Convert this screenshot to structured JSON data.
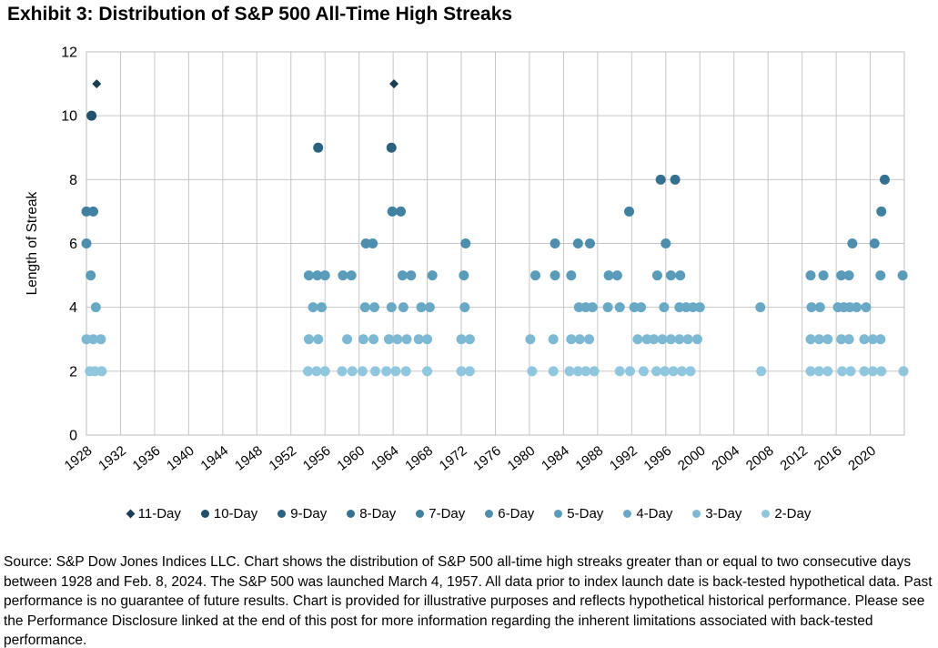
{
  "source_note": "Source: S&P Dow Jones Indices LLC. Chart shows the distribution of S&P 500 all-time high streaks greater than or equal to two consecutive days between 1928 and Feb. 8, 2024. The S&P 500 was launched March 4, 1957. All data prior to index launch date is back-tested hypothetical data. Past performance is no guarantee of future results. Chart is provided for illustrative purposes and reflects hypothetical historical performance. Please see the Performance Disclosure linked at the end of this post for more information regarding the inherent limitations associated with back-tested performance.",
  "chart_data": {
    "type": "scatter",
    "title": "Exhibit 3: Distribution of S&P 500 All-Time High Streaks",
    "xlabel": "",
    "ylabel": "Length of Streak",
    "xlim": [
      1928,
      2024
    ],
    "ylim": [
      0,
      12
    ],
    "xticks": [
      1928,
      1932,
      1936,
      1940,
      1944,
      1948,
      1952,
      1956,
      1960,
      1964,
      1968,
      1972,
      1976,
      1980,
      1984,
      1988,
      1992,
      1996,
      2000,
      2004,
      2008,
      2012,
      2016,
      2020
    ],
    "yticks": [
      0,
      2,
      4,
      6,
      8,
      10,
      12
    ],
    "grid": true,
    "gridline_color": "#c6c6c6",
    "legend_position": "bottom",
    "series": [
      {
        "name": "11-Day",
        "length": 11,
        "marker": "diamond",
        "color": "#1c3e53",
        "years": [
          1929.2,
          1964.1
        ]
      },
      {
        "name": "10-Day",
        "length": 10,
        "marker": "circle",
        "color": "#20506a",
        "years": [
          1928.6
        ]
      },
      {
        "name": "9-Day",
        "length": 9,
        "marker": "circle",
        "color": "#2a617e",
        "years": [
          1955.2,
          1963.8
        ]
      },
      {
        "name": "8-Day",
        "length": 8,
        "marker": "circle",
        "color": "#347090",
        "years": [
          1995.4,
          1997.1,
          2021.7
        ]
      },
      {
        "name": "7-Day",
        "length": 7,
        "marker": "circle",
        "color": "#4080a0",
        "years": [
          1928.0,
          1928.8,
          1963.9,
          1964.9,
          1991.7,
          2021.3
        ]
      },
      {
        "name": "6-Day",
        "length": 6,
        "marker": "circle",
        "color": "#4d8eae",
        "years": [
          1928.0,
          1960.8,
          1961.6,
          1972.5,
          1983.0,
          1985.7,
          1987.1,
          1996.0,
          2017.9,
          2020.5
        ]
      },
      {
        "name": "5-Day",
        "length": 5,
        "marker": "circle",
        "color": "#5a9bba",
        "years": [
          1928.5,
          1954.1,
          1955.1,
          1956.0,
          1958.1,
          1959.1,
          1965.1,
          1966.1,
          1968.6,
          1972.3,
          1980.7,
          1983.0,
          1984.9,
          1989.3,
          1990.3,
          1995.0,
          1996.6,
          1997.7,
          2013.0,
          2014.5,
          2016.6,
          2017.5,
          2021.2,
          2023.8
        ]
      },
      {
        "name": "4-Day",
        "length": 4,
        "marker": "circle",
        "color": "#69a9c5",
        "years": [
          1929.1,
          1954.6,
          1955.6,
          1960.7,
          1961.8,
          1963.8,
          1965.2,
          1967.3,
          1968.3,
          1972.4,
          1985.8,
          1986.6,
          1987.4,
          1989.2,
          1990.6,
          1992.3,
          1993.1,
          1995.8,
          1997.6,
          1998.4,
          1999.2,
          2000.0,
          2007.1,
          2013.1,
          2014.1,
          2016.2,
          2016.9,
          2017.6,
          2018.4,
          2019.5
        ]
      },
      {
        "name": "3-Day",
        "length": 3,
        "marker": "circle",
        "color": "#7db9d3",
        "years": [
          1928.0,
          1928.8,
          1929.7,
          1954.1,
          1955.2,
          1958.6,
          1960.5,
          1961.7,
          1963.5,
          1964.5,
          1965.6,
          1967.0,
          1968.0,
          1972.0,
          1973.0,
          1980.1,
          1982.8,
          1984.9,
          1985.9,
          1987.0,
          1992.7,
          1993.8,
          1994.6,
          1995.6,
          1996.6,
          1997.6,
          1998.6,
          1999.7,
          2013.0,
          2014.0,
          2015.0,
          2016.6,
          2017.5,
          2019.3,
          2020.3,
          2021.2
        ]
      },
      {
        "name": "2-Day",
        "length": 2,
        "marker": "circle",
        "color": "#90c6de",
        "years": [
          1928.4,
          1929.0,
          1929.8,
          1954.0,
          1955.0,
          1956.0,
          1958.0,
          1959.2,
          1960.4,
          1961.9,
          1963.2,
          1964.3,
          1965.5,
          1968.0,
          1972.0,
          1973.0,
          1980.3,
          1982.8,
          1984.7,
          1985.7,
          1986.6,
          1987.6,
          1990.6,
          1991.8,
          1993.4,
          1994.9,
          1995.9,
          1996.9,
          1997.9,
          1998.9,
          2007.2,
          2013.0,
          2014.0,
          2015.0,
          2016.7,
          2017.7,
          2019.3,
          2020.3,
          2021.3,
          2023.9
        ]
      }
    ]
  }
}
